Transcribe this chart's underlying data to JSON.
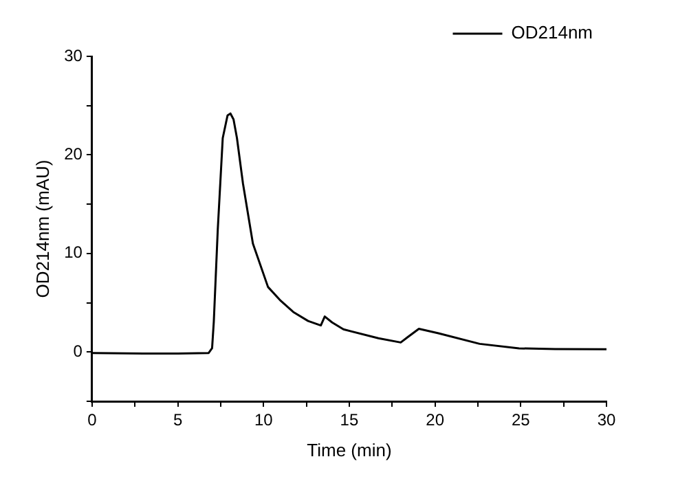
{
  "chart_data": {
    "type": "line",
    "xlabel": "Time (min)",
    "ylabel": "OD214nm (mAU)",
    "legend": "top right",
    "grid": false,
    "marker": "none",
    "line_style": "solid",
    "xlim": [
      0,
      30
    ],
    "ylim": [
      -5,
      30
    ],
    "xticks": [
      0,
      {
        "value": 2.5,
        "label": null
      },
      5,
      {
        "value": 7.5,
        "label": null
      },
      10,
      {
        "value": 12.5,
        "label": null
      },
      15,
      {
        "value": 17.5,
        "label": null
      },
      20,
      {
        "value": 22.5,
        "label": null
      },
      25,
      {
        "value": 27.5,
        "label": null
      },
      30
    ],
    "yticks": [
      {
        "value": -5,
        "label": null
      },
      0,
      {
        "value": 5,
        "label": null
      },
      10,
      {
        "value": 15,
        "label": null
      },
      20,
      {
        "value": 25,
        "label": null
      },
      30
    ],
    "series": [
      {
        "name": "OD214nm",
        "color": "#000000",
        "x": [
          0,
          3,
          5,
          6.8,
          7.0,
          7.1,
          7.33,
          7.62,
          7.9,
          8.07,
          8.25,
          8.45,
          8.8,
          9.38,
          10.26,
          11.0,
          11.73,
          12.6,
          13.34,
          13.57,
          14.0,
          14.66,
          16.7,
          18.0,
          18.4,
          19.06,
          20.2,
          22.6,
          24.9,
          27,
          30
        ],
        "values": [
          -0.1,
          -0.15,
          -0.15,
          -0.1,
          0.4,
          3.1,
          12.4,
          21.7,
          24.0,
          24.2,
          23.6,
          21.7,
          17.1,
          11.0,
          6.6,
          5.2,
          4.07,
          3.15,
          2.7,
          3.6,
          3.0,
          2.3,
          1.4,
          0.97,
          1.5,
          2.36,
          1.9,
          0.83,
          0.37,
          0.3,
          0.28
        ]
      }
    ]
  }
}
